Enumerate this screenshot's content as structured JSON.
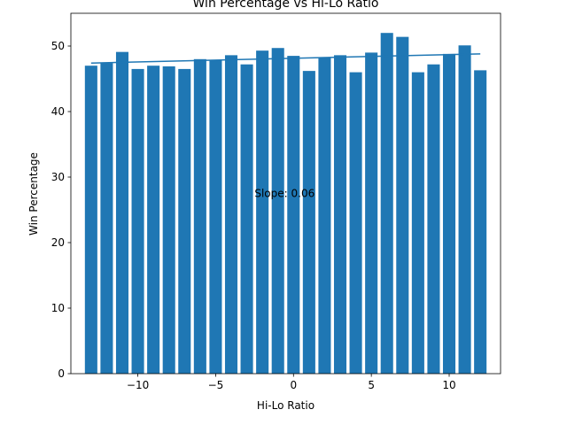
{
  "chart_data": {
    "type": "bar",
    "title": "Win Percentage vs Hi-Lo Ratio",
    "xlabel": "Hi-Lo Ratio",
    "ylabel": "Win Percentage",
    "xlim": [
      -14.3,
      13.3
    ],
    "ylim": [
      0,
      55
    ],
    "x_ticks": [
      -10,
      -5,
      0,
      5,
      10
    ],
    "x_tick_labels": [
      "−10",
      "−5",
      "0",
      "5",
      "10"
    ],
    "y_ticks": [
      0,
      10,
      20,
      30,
      40,
      50
    ],
    "y_tick_labels": [
      "0",
      "10",
      "20",
      "30",
      "40",
      "50"
    ],
    "grid": false,
    "bar_color": "#1f77b4",
    "bar_width": 0.8,
    "x": [
      -13,
      -12,
      -11,
      -10,
      -9,
      -8,
      -7,
      -6,
      -5,
      -4,
      -3,
      -2,
      -1,
      0,
      1,
      2,
      3,
      4,
      5,
      6,
      7,
      8,
      9,
      10,
      11,
      12
    ],
    "values": [
      47.0,
      47.4,
      49.1,
      46.5,
      47.0,
      46.9,
      46.5,
      48.0,
      47.9,
      48.6,
      47.2,
      49.3,
      49.7,
      48.5,
      46.2,
      48.2,
      48.6,
      46.0,
      49.0,
      52.0,
      51.4,
      46.0,
      47.2,
      48.8,
      50.1,
      46.3
    ],
    "trendline": {
      "color": "#1f77b4",
      "x": [
        -13,
        12
      ],
      "y": [
        47.4,
        48.8
      ]
    },
    "annotation": {
      "text": "Slope: 0.06",
      "x": 0,
      "y": 27.5
    }
  }
}
